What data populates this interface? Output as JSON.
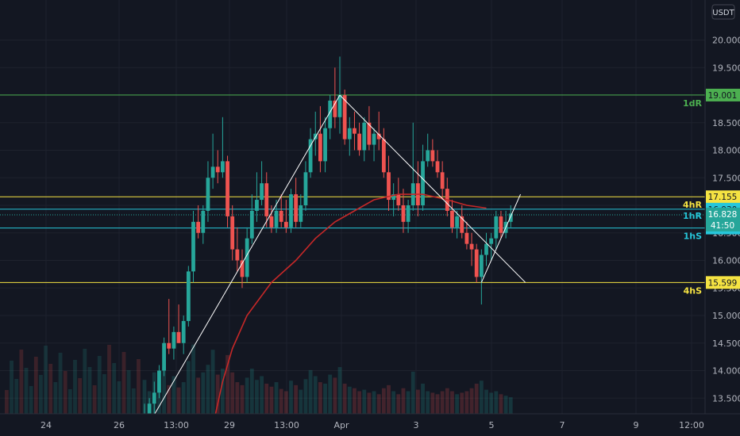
{
  "chart_data": {
    "type": "candlestick",
    "currency": "USDT",
    "y_axis": {
      "ticks": [
        "20.000",
        "19.500",
        "19.000",
        "18.500",
        "18.000",
        "17.500",
        "17.000",
        "16.500",
        "16.000",
        "15.500",
        "15.000",
        "14.500",
        "14.000",
        "13.500"
      ],
      "range": [
        13.2,
        20.3
      ]
    },
    "x_axis": {
      "labels": [
        "24",
        "26",
        "13:00",
        "29",
        "13:00",
        "Apr",
        "3",
        "5",
        "7",
        "9",
        "12:00"
      ]
    },
    "candles": [
      [
        12.9,
        13.4,
        12.8,
        13.2
      ],
      [
        13.2,
        13.5,
        13.0,
        13.4
      ],
      [
        13.4,
        13.8,
        13.2,
        13.6
      ],
      [
        13.6,
        14.1,
        13.5,
        14.0
      ],
      [
        14.0,
        14.6,
        13.9,
        14.5
      ],
      [
        14.5,
        15.3,
        14.3,
        14.4
      ],
      [
        14.4,
        14.8,
        14.2,
        14.7
      ],
      [
        14.7,
        15.2,
        14.5,
        14.5
      ],
      [
        14.5,
        15.0,
        14.3,
        14.9
      ],
      [
        14.9,
        15.9,
        14.8,
        15.8
      ],
      [
        15.8,
        16.9,
        15.6,
        16.7
      ],
      [
        16.7,
        17.0,
        16.4,
        16.5
      ],
      [
        16.5,
        17.0,
        16.3,
        16.9
      ],
      [
        16.9,
        17.8,
        16.7,
        17.5
      ],
      [
        17.5,
        18.3,
        17.3,
        17.7
      ],
      [
        17.7,
        18.0,
        17.4,
        17.6
      ],
      [
        17.6,
        18.6,
        17.5,
        17.8
      ],
      [
        17.8,
        17.9,
        16.6,
        16.8
      ],
      [
        16.8,
        17.0,
        16.0,
        16.2
      ],
      [
        16.2,
        16.6,
        15.8,
        16.0
      ],
      [
        16.0,
        16.2,
        15.5,
        15.7
      ],
      [
        15.7,
        16.6,
        15.6,
        16.4
      ],
      [
        16.4,
        17.2,
        16.3,
        16.9
      ],
      [
        16.9,
        17.6,
        16.7,
        17.1
      ],
      [
        17.1,
        17.8,
        17.0,
        17.4
      ],
      [
        17.4,
        17.6,
        16.6,
        16.8
      ],
      [
        16.8,
        17.0,
        16.5,
        16.6
      ],
      [
        16.6,
        17.1,
        16.5,
        16.9
      ],
      [
        16.9,
        17.2,
        16.6,
        16.7
      ],
      [
        16.7,
        17.1,
        16.5,
        16.6
      ],
      [
        16.6,
        17.3,
        16.5,
        17.2
      ],
      [
        17.2,
        17.5,
        16.6,
        16.7
      ],
      [
        16.7,
        17.2,
        16.6,
        17.0
      ],
      [
        17.0,
        17.8,
        16.9,
        17.6
      ],
      [
        17.6,
        18.4,
        17.5,
        18.2
      ],
      [
        18.2,
        18.7,
        17.9,
        18.3
      ],
      [
        18.3,
        18.8,
        17.6,
        17.8
      ],
      [
        17.8,
        18.6,
        17.6,
        18.4
      ],
      [
        18.4,
        19.0,
        18.2,
        18.9
      ],
      [
        18.9,
        19.5,
        18.4,
        18.6
      ],
      [
        18.6,
        19.7,
        18.3,
        19.0
      ],
      [
        19.0,
        19.1,
        18.1,
        18.2
      ],
      [
        18.2,
        18.6,
        17.9,
        18.4
      ],
      [
        18.4,
        18.7,
        18.0,
        18.3
      ],
      [
        18.3,
        18.5,
        17.9,
        18.0
      ],
      [
        18.0,
        18.6,
        17.8,
        18.5
      ],
      [
        18.5,
        18.8,
        18.0,
        18.1
      ],
      [
        18.1,
        18.4,
        17.8,
        18.3
      ],
      [
        18.3,
        18.7,
        18.0,
        18.2
      ],
      [
        18.2,
        18.4,
        17.5,
        17.6
      ],
      [
        17.6,
        17.9,
        16.9,
        17.1
      ],
      [
        17.1,
        17.4,
        16.8,
        17.2
      ],
      [
        17.2,
        17.5,
        16.9,
        17.0
      ],
      [
        17.0,
        17.3,
        16.5,
        16.7
      ],
      [
        16.7,
        17.1,
        16.5,
        17.0
      ],
      [
        17.0,
        18.5,
        16.9,
        17.4
      ],
      [
        17.4,
        17.8,
        16.8,
        17.0
      ],
      [
        17.0,
        18.1,
        16.9,
        17.8
      ],
      [
        17.8,
        18.3,
        17.7,
        18.0
      ],
      [
        18.0,
        18.2,
        17.7,
        17.8
      ],
      [
        17.8,
        18.0,
        17.5,
        17.6
      ],
      [
        17.6,
        17.8,
        17.1,
        17.3
      ],
      [
        17.3,
        17.5,
        16.8,
        16.9
      ],
      [
        16.9,
        17.1,
        16.5,
        16.6
      ],
      [
        16.6,
        16.9,
        16.4,
        16.8
      ],
      [
        16.8,
        17.0,
        16.4,
        16.5
      ],
      [
        16.5,
        16.7,
        16.2,
        16.3
      ],
      [
        16.3,
        16.5,
        15.9,
        16.2
      ],
      [
        16.2,
        16.3,
        15.6,
        15.7
      ],
      [
        15.7,
        16.2,
        15.2,
        16.1
      ],
      [
        16.1,
        16.5,
        15.9,
        16.3
      ],
      [
        16.3,
        16.5,
        16.0,
        16.4
      ],
      [
        16.4,
        16.9,
        16.2,
        16.8
      ],
      [
        16.8,
        16.9,
        16.4,
        16.5
      ],
      [
        16.5,
        16.9,
        16.4,
        16.7
      ],
      [
        16.7,
        17.0,
        16.6,
        16.85
      ]
    ],
    "volume": [
      0.45,
      0.3,
      0.55,
      0.4,
      0.62,
      0.38,
      0.5,
      0.35,
      0.42,
      0.7,
      0.92,
      0.48,
      0.55,
      0.65,
      0.85,
      0.52,
      0.6,
      0.78,
      0.55,
      0.42,
      0.38,
      0.48,
      0.6,
      0.45,
      0.5,
      0.4,
      0.36,
      0.42,
      0.33,
      0.3,
      0.44,
      0.38,
      0.32,
      0.46,
      0.58,
      0.5,
      0.42,
      0.4,
      0.52,
      0.48,
      0.62,
      0.4,
      0.36,
      0.34,
      0.3,
      0.32,
      0.28,
      0.3,
      0.26,
      0.34,
      0.38,
      0.3,
      0.26,
      0.34,
      0.3,
      0.56,
      0.32,
      0.4,
      0.3,
      0.28,
      0.26,
      0.3,
      0.34,
      0.3,
      0.26,
      0.28,
      0.3,
      0.34,
      0.4,
      0.44,
      0.32,
      0.28,
      0.3,
      0.26,
      0.24,
      0.22
    ],
    "moving_average": [
      [
        13.2,
        null
      ],
      [
        13.8,
        5
      ],
      [
        14.4,
        10
      ],
      [
        15.0,
        14
      ],
      [
        15.6,
        20
      ],
      [
        16.0,
        25
      ],
      [
        16.4,
        31
      ],
      [
        16.7,
        36
      ],
      [
        16.9,
        42
      ],
      [
        17.1,
        47
      ],
      [
        17.2,
        53
      ],
      [
        17.2,
        59
      ],
      [
        17.1,
        64
      ],
      [
        17.0,
        70
      ],
      [
        16.95,
        76
      ]
    ],
    "levels": [
      {
        "label": "1dR",
        "price": 19.001,
        "price_label": "19.001",
        "color": "#4caf50"
      },
      {
        "label": "4hR",
        "price": 17.155,
        "price_label": "17.155",
        "color": "#f5e342"
      },
      {
        "label": "1hR",
        "price": 16.93,
        "price_label": "16.930",
        "color": "#26c6da"
      },
      {
        "label": "1hS",
        "price": 16.588,
        "price_label": "16.588",
        "color": "#26c6da"
      },
      {
        "label": "4hS",
        "price": 15.599,
        "price_label": "15.599",
        "color": "#f5e342"
      }
    ],
    "current_price": {
      "price": 16.828,
      "price_label": "16.828",
      "countdown": "41:50",
      "color": "#26a69a"
    },
    "trendlines": [
      {
        "name": "upper-descending",
        "from": [
          40,
          19.0
        ],
        "to": [
          78,
          15.6
        ]
      },
      {
        "name": "ascending-left",
        "from": [
          2,
          13.2
        ],
        "to": [
          40,
          19.0
        ]
      },
      {
        "name": "ascending-right",
        "from": [
          69,
          15.6
        ],
        "to": [
          77,
          17.2
        ]
      }
    ],
    "colors": {
      "up": "#26a69a",
      "down": "#ef5350",
      "ma": "#c62828",
      "grid": "#1e222d",
      "trendline": "#ffffff"
    },
    "grid": true
  }
}
